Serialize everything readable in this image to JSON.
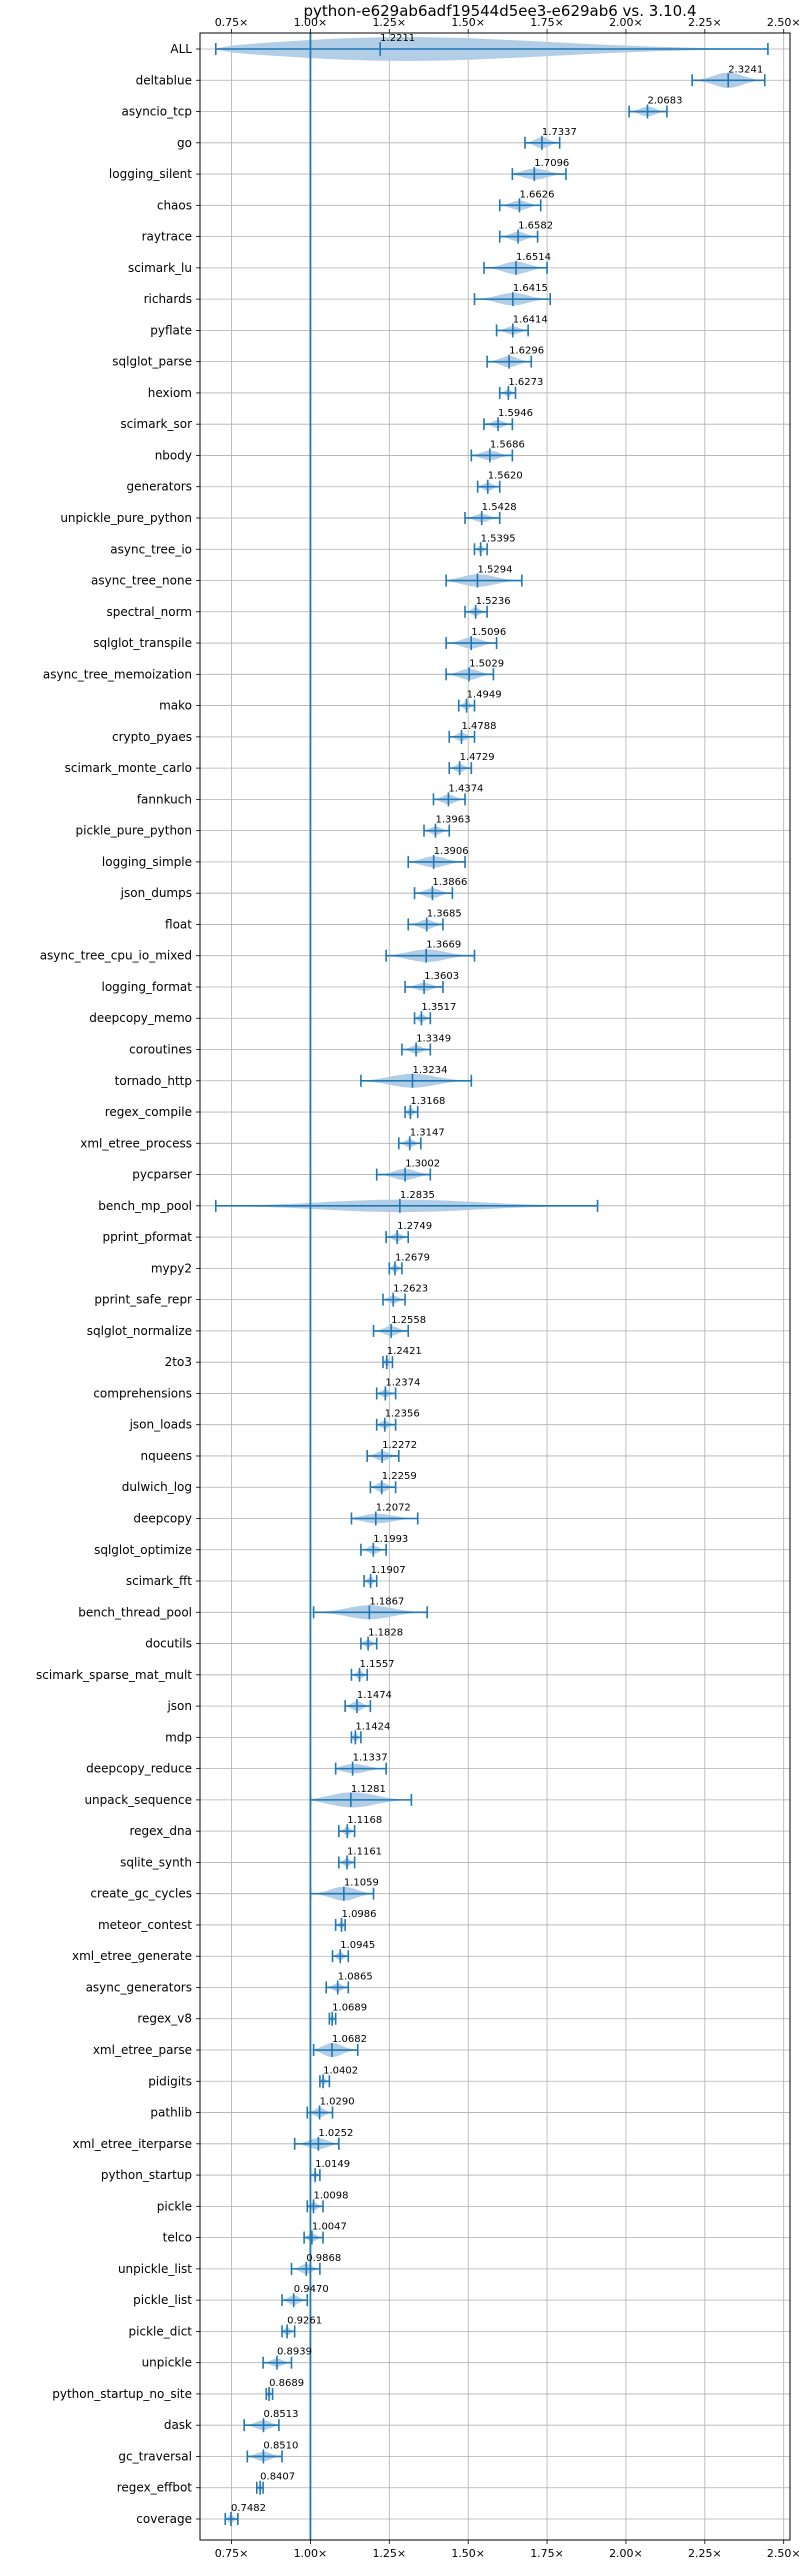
{
  "chart_data": {
    "type": "violin",
    "title": "python-e629ab6adf19544d5ee3-e629ab6 vs. 3.10.4",
    "xlabel": "",
    "ylabel": "",
    "xlim": [
      0.65,
      2.52
    ],
    "x_ticks": [
      0.75,
      1.0,
      1.25,
      1.5,
      1.75,
      2.0,
      2.25,
      2.5
    ],
    "x_tick_labels": [
      "0.75×",
      "1.00×",
      "1.25×",
      "1.50×",
      "1.75×",
      "2.00×",
      "2.25×",
      "2.50×"
    ],
    "reference_line": 1.0,
    "grid": true,
    "colors": {
      "violin": "#aecbe6",
      "whisker": "#1f77b4",
      "grid": "#b0b0b0"
    },
    "benchmarks": [
      {
        "name": "ALL",
        "mean": 1.2211,
        "lo": 0.7,
        "hi": 2.45,
        "spread": 0.9
      },
      {
        "name": "deltablue",
        "mean": 2.3241,
        "lo": 2.21,
        "hi": 2.44,
        "spread": 0.55
      },
      {
        "name": "asyncio_tcp",
        "mean": 2.0683,
        "lo": 2.01,
        "hi": 2.13,
        "spread": 0.35
      },
      {
        "name": "go",
        "mean": 1.7337,
        "lo": 1.68,
        "hi": 1.79,
        "spread": 0.4
      },
      {
        "name": "logging_silent",
        "mean": 1.7096,
        "lo": 1.64,
        "hi": 1.81,
        "spread": 0.4
      },
      {
        "name": "chaos",
        "mean": 1.6626,
        "lo": 1.6,
        "hi": 1.73,
        "spread": 0.35
      },
      {
        "name": "raytrace",
        "mean": 1.6582,
        "lo": 1.6,
        "hi": 1.72,
        "spread": 0.35
      },
      {
        "name": "scimark_lu",
        "mean": 1.6514,
        "lo": 1.55,
        "hi": 1.75,
        "spread": 0.45
      },
      {
        "name": "richards",
        "mean": 1.6415,
        "lo": 1.52,
        "hi": 1.76,
        "spread": 0.45
      },
      {
        "name": "pyflate",
        "mean": 1.6414,
        "lo": 1.59,
        "hi": 1.69,
        "spread": 0.3
      },
      {
        "name": "sqlglot_parse",
        "mean": 1.6296,
        "lo": 1.56,
        "hi": 1.7,
        "spread": 0.4
      },
      {
        "name": "hexiom",
        "mean": 1.6273,
        "lo": 1.6,
        "hi": 1.65,
        "spread": 0.25
      },
      {
        "name": "scimark_sor",
        "mean": 1.5946,
        "lo": 1.55,
        "hi": 1.64,
        "spread": 0.3
      },
      {
        "name": "nbody",
        "mean": 1.5686,
        "lo": 1.51,
        "hi": 1.64,
        "spread": 0.35
      },
      {
        "name": "generators",
        "mean": 1.562,
        "lo": 1.53,
        "hi": 1.6,
        "spread": 0.3
      },
      {
        "name": "unpickle_pure_python",
        "mean": 1.5428,
        "lo": 1.49,
        "hi": 1.6,
        "spread": 0.3
      },
      {
        "name": "async_tree_io",
        "mean": 1.5395,
        "lo": 1.52,
        "hi": 1.56,
        "spread": 0.25
      },
      {
        "name": "async_tree_none",
        "mean": 1.5294,
        "lo": 1.43,
        "hi": 1.67,
        "spread": 0.45
      },
      {
        "name": "spectral_norm",
        "mean": 1.5236,
        "lo": 1.49,
        "hi": 1.56,
        "spread": 0.3
      },
      {
        "name": "sqlglot_transpile",
        "mean": 1.5096,
        "lo": 1.43,
        "hi": 1.59,
        "spread": 0.4
      },
      {
        "name": "async_tree_memoization",
        "mean": 1.5029,
        "lo": 1.43,
        "hi": 1.58,
        "spread": 0.4
      },
      {
        "name": "mako",
        "mean": 1.4949,
        "lo": 1.47,
        "hi": 1.52,
        "spread": 0.3
      },
      {
        "name": "crypto_pyaes",
        "mean": 1.4788,
        "lo": 1.44,
        "hi": 1.52,
        "spread": 0.3
      },
      {
        "name": "scimark_monte_carlo",
        "mean": 1.4729,
        "lo": 1.44,
        "hi": 1.51,
        "spread": 0.3
      },
      {
        "name": "fannkuch",
        "mean": 1.4374,
        "lo": 1.39,
        "hi": 1.49,
        "spread": 0.35
      },
      {
        "name": "pickle_pure_python",
        "mean": 1.3963,
        "lo": 1.36,
        "hi": 1.44,
        "spread": 0.3
      },
      {
        "name": "logging_simple",
        "mean": 1.3906,
        "lo": 1.31,
        "hi": 1.49,
        "spread": 0.4
      },
      {
        "name": "json_dumps",
        "mean": 1.3866,
        "lo": 1.33,
        "hi": 1.45,
        "spread": 0.35
      },
      {
        "name": "float",
        "mean": 1.3685,
        "lo": 1.31,
        "hi": 1.42,
        "spread": 0.35
      },
      {
        "name": "async_tree_cpu_io_mixed",
        "mean": 1.3669,
        "lo": 1.24,
        "hi": 1.52,
        "spread": 0.45
      },
      {
        "name": "logging_format",
        "mean": 1.3603,
        "lo": 1.3,
        "hi": 1.42,
        "spread": 0.3
      },
      {
        "name": "deepcopy_memo",
        "mean": 1.3517,
        "lo": 1.33,
        "hi": 1.38,
        "spread": 0.3
      },
      {
        "name": "coroutines",
        "mean": 1.3349,
        "lo": 1.29,
        "hi": 1.38,
        "spread": 0.3
      },
      {
        "name": "tornado_http",
        "mean": 1.3234,
        "lo": 1.16,
        "hi": 1.51,
        "spread": 0.5
      },
      {
        "name": "regex_compile",
        "mean": 1.3168,
        "lo": 1.3,
        "hi": 1.34,
        "spread": 0.3
      },
      {
        "name": "xml_etree_process",
        "mean": 1.3147,
        "lo": 1.28,
        "hi": 1.35,
        "spread": 0.3
      },
      {
        "name": "pycparser",
        "mean": 1.3002,
        "lo": 1.21,
        "hi": 1.38,
        "spread": 0.4
      },
      {
        "name": "bench_mp_pool",
        "mean": 1.2835,
        "lo": 0.7,
        "hi": 1.91,
        "spread": 0.45
      },
      {
        "name": "pprint_pformat",
        "mean": 1.2749,
        "lo": 1.24,
        "hi": 1.31,
        "spread": 0.3
      },
      {
        "name": "mypy2",
        "mean": 1.2679,
        "lo": 1.25,
        "hi": 1.29,
        "spread": 0.3
      },
      {
        "name": "pprint_safe_repr",
        "mean": 1.2623,
        "lo": 1.23,
        "hi": 1.3,
        "spread": 0.3
      },
      {
        "name": "sqlglot_normalize",
        "mean": 1.2558,
        "lo": 1.2,
        "hi": 1.31,
        "spread": 0.35
      },
      {
        "name": "2to3",
        "mean": 1.2421,
        "lo": 1.23,
        "hi": 1.26,
        "spread": 0.3
      },
      {
        "name": "comprehensions",
        "mean": 1.2374,
        "lo": 1.21,
        "hi": 1.27,
        "spread": 0.3
      },
      {
        "name": "json_loads",
        "mean": 1.2356,
        "lo": 1.21,
        "hi": 1.27,
        "spread": 0.3
      },
      {
        "name": "nqueens",
        "mean": 1.2272,
        "lo": 1.18,
        "hi": 1.28,
        "spread": 0.35
      },
      {
        "name": "dulwich_log",
        "mean": 1.2259,
        "lo": 1.19,
        "hi": 1.27,
        "spread": 0.35
      },
      {
        "name": "deepcopy",
        "mean": 1.2072,
        "lo": 1.13,
        "hi": 1.34,
        "spread": 0.35
      },
      {
        "name": "sqlglot_optimize",
        "mean": 1.1993,
        "lo": 1.16,
        "hi": 1.24,
        "spread": 0.3
      },
      {
        "name": "scimark_fft",
        "mean": 1.1907,
        "lo": 1.17,
        "hi": 1.21,
        "spread": 0.3
      },
      {
        "name": "bench_thread_pool",
        "mean": 1.1867,
        "lo": 1.01,
        "hi": 1.37,
        "spread": 0.5
      },
      {
        "name": "docutils",
        "mean": 1.1828,
        "lo": 1.16,
        "hi": 1.21,
        "spread": 0.3
      },
      {
        "name": "scimark_sparse_mat_mult",
        "mean": 1.1557,
        "lo": 1.13,
        "hi": 1.18,
        "spread": 0.3
      },
      {
        "name": "json",
        "mean": 1.1474,
        "lo": 1.11,
        "hi": 1.19,
        "spread": 0.35
      },
      {
        "name": "mdp",
        "mean": 1.1424,
        "lo": 1.13,
        "hi": 1.16,
        "spread": 0.3
      },
      {
        "name": "deepcopy_reduce",
        "mean": 1.1337,
        "lo": 1.08,
        "hi": 1.24,
        "spread": 0.35
      },
      {
        "name": "unpack_sequence",
        "mean": 1.1281,
        "lo": 1.0,
        "hi": 1.32,
        "spread": 0.55
      },
      {
        "name": "regex_dna",
        "mean": 1.1168,
        "lo": 1.09,
        "hi": 1.14,
        "spread": 0.3
      },
      {
        "name": "sqlite_synth",
        "mean": 1.1161,
        "lo": 1.09,
        "hi": 1.14,
        "spread": 0.3
      },
      {
        "name": "create_gc_cycles",
        "mean": 1.1059,
        "lo": 1.0,
        "hi": 1.2,
        "spread": 0.5
      },
      {
        "name": "meteor_contest",
        "mean": 1.0986,
        "lo": 1.08,
        "hi": 1.11,
        "spread": 0.25
      },
      {
        "name": "xml_etree_generate",
        "mean": 1.0945,
        "lo": 1.07,
        "hi": 1.12,
        "spread": 0.3
      },
      {
        "name": "async_generators",
        "mean": 1.0865,
        "lo": 1.05,
        "hi": 1.12,
        "spread": 0.3
      },
      {
        "name": "regex_v8",
        "mean": 1.0689,
        "lo": 1.06,
        "hi": 1.08,
        "spread": 0.25
      },
      {
        "name": "xml_etree_parse",
        "mean": 1.0682,
        "lo": 1.01,
        "hi": 1.15,
        "spread": 0.5
      },
      {
        "name": "pidigits",
        "mean": 1.0402,
        "lo": 1.03,
        "hi": 1.06,
        "spread": 0.25
      },
      {
        "name": "pathlib",
        "mean": 1.029,
        "lo": 0.99,
        "hi": 1.07,
        "spread": 0.35
      },
      {
        "name": "xml_etree_iterparse",
        "mean": 1.0252,
        "lo": 0.95,
        "hi": 1.09,
        "spread": 0.4
      },
      {
        "name": "python_startup",
        "mean": 1.0149,
        "lo": 1.0,
        "hi": 1.03,
        "spread": 0.25
      },
      {
        "name": "pickle",
        "mean": 1.0098,
        "lo": 0.99,
        "hi": 1.04,
        "spread": 0.3
      },
      {
        "name": "telco",
        "mean": 1.0047,
        "lo": 0.98,
        "hi": 1.04,
        "spread": 0.3
      },
      {
        "name": "unpickle_list",
        "mean": 0.9868,
        "lo": 0.94,
        "hi": 1.03,
        "spread": 0.35
      },
      {
        "name": "pickle_list",
        "mean": 0.947,
        "lo": 0.91,
        "hi": 0.99,
        "spread": 0.35
      },
      {
        "name": "pickle_dict",
        "mean": 0.9261,
        "lo": 0.91,
        "hi": 0.95,
        "spread": 0.3
      },
      {
        "name": "unpickle",
        "mean": 0.8939,
        "lo": 0.85,
        "hi": 0.94,
        "spread": 0.3
      },
      {
        "name": "python_startup_no_site",
        "mean": 0.8689,
        "lo": 0.86,
        "hi": 0.88,
        "spread": 0.25
      },
      {
        "name": "dask",
        "mean": 0.8513,
        "lo": 0.79,
        "hi": 0.9,
        "spread": 0.35
      },
      {
        "name": "gc_traversal",
        "mean": 0.851,
        "lo": 0.8,
        "hi": 0.91,
        "spread": 0.35
      },
      {
        "name": "regex_effbot",
        "mean": 0.8407,
        "lo": 0.83,
        "hi": 0.85,
        "spread": 0.25
      },
      {
        "name": "coverage",
        "mean": 0.7482,
        "lo": 0.73,
        "hi": 0.77,
        "spread": 0.3
      }
    ]
  }
}
